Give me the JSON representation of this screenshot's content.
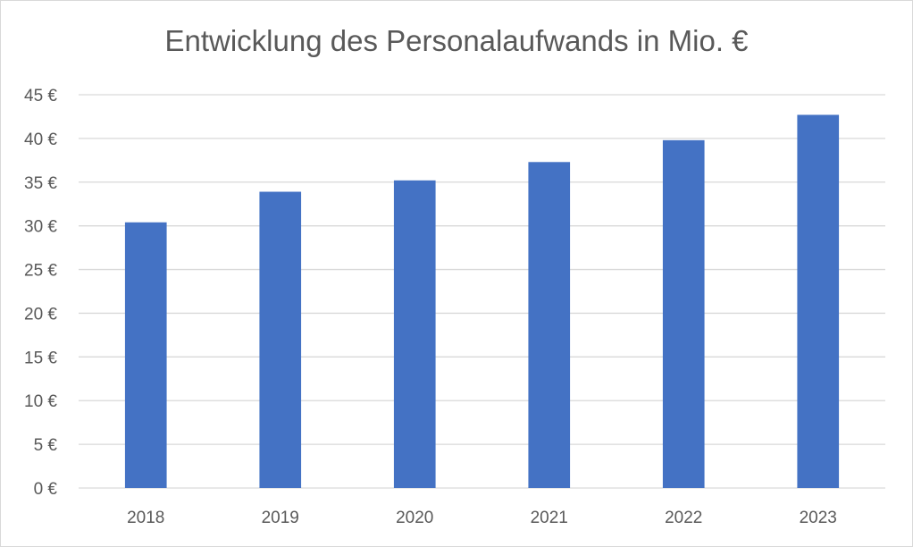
{
  "chart_data": {
    "type": "bar",
    "title": "Entwicklung des Personalaufwands in Mio. €",
    "xlabel": "",
    "ylabel": "",
    "categories": [
      "2018",
      "2019",
      "2020",
      "2021",
      "2022",
      "2023"
    ],
    "values": [
      30.4,
      33.9,
      35.2,
      37.3,
      39.8,
      42.7
    ],
    "ylim": [
      0,
      45
    ],
    "y_ticks": [
      "0 €",
      "5 €",
      "10 €",
      "15 €",
      "20 €",
      "25 €",
      "30 €",
      "35 €",
      "40 €",
      "45 €"
    ],
    "y_tick_step": 5,
    "grid": true,
    "legend": "none",
    "colors": {
      "bar": "#4472C4",
      "grid": "#d9d9d9",
      "text": "#595959"
    }
  }
}
